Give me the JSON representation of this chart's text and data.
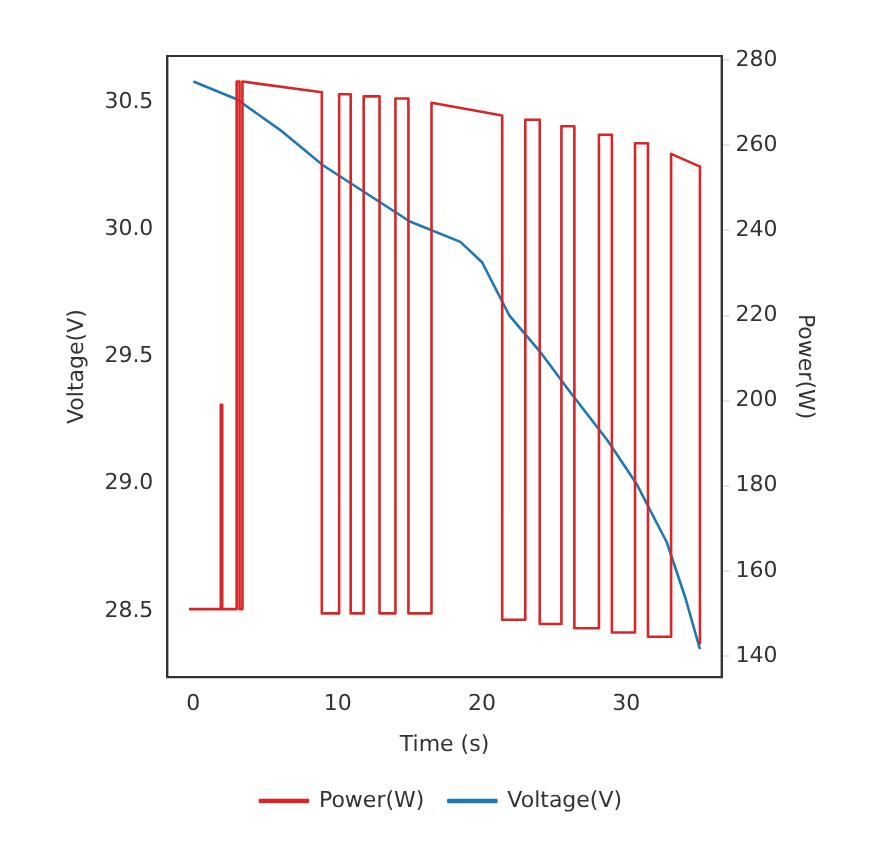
{
  "chart_data": {
    "type": "line",
    "xlabel": "Time (s)",
    "ylabel": "Voltage(V)",
    "y2label": "Power(W)",
    "xlim": [
      -1.8,
      36.6
    ],
    "xticks": [
      0,
      10,
      20,
      30
    ],
    "ylim": [
      28.24,
      30.68
    ],
    "yticks": [
      28.5,
      {
        "value": 29,
        "label": "29.0"
      },
      29.5,
      {
        "value": 30,
        "label": "30.0"
      },
      30.5
    ],
    "y2lim": [
      135,
      281
    ],
    "y2ticks": [
      140,
      160,
      180,
      200,
      220,
      240,
      260,
      280
    ],
    "legend": "bottom",
    "grid": false,
    "series": [
      {
        "name": "Power(W)",
        "color": "#d62728",
        "axis": "y2",
        "x": [
          -0.3,
          1.9,
          1.9,
          2.0,
          2.0,
          3.0,
          3.0,
          3.2,
          3.2,
          3.4,
          3.4,
          8.9,
          8.9,
          10.1,
          10.1,
          10.9,
          10.9,
          11.8,
          11.8,
          12.9,
          12.9,
          14.0,
          14.0,
          14.9,
          14.9,
          16.5,
          16.5,
          21.4,
          21.4,
          23.0,
          23.0,
          24.0,
          24.0,
          25.5,
          25.5,
          26.4,
          26.4,
          28.1,
          28.1,
          29.0,
          29.0,
          30.6,
          30.6,
          31.5,
          31.5,
          33.1,
          33.1,
          35.1,
          35.1
        ],
        "values": [
          151,
          151,
          199,
          199,
          151,
          151,
          275,
          275,
          151,
          151,
          275,
          272.5,
          150,
          150,
          272,
          272,
          150,
          150,
          271.5,
          271.5,
          150,
          150,
          271,
          271,
          150,
          150,
          270,
          267,
          148.5,
          148.5,
          266,
          266,
          147.5,
          147.5,
          264.5,
          264.5,
          146.5,
          146.5,
          262.5,
          262.5,
          145.5,
          145.5,
          260.5,
          260.5,
          144.5,
          144.5,
          258,
          255,
          143
        ]
      },
      {
        "name": "Voltage(V)",
        "color": "#1f77b4",
        "axis": "y",
        "x": [
          0,
          3,
          6,
          9,
          12,
          15,
          18.5,
          20,
          21.9,
          24,
          26.1,
          28.7,
          30.7,
          32.8,
          34.1,
          35.1
        ],
        "values": [
          30.58,
          30.51,
          30.39,
          30.25,
          30.14,
          30.03,
          29.95,
          29.87,
          29.66,
          29.52,
          29.36,
          29.17,
          29.0,
          28.77,
          28.55,
          28.35
        ]
      }
    ]
  }
}
